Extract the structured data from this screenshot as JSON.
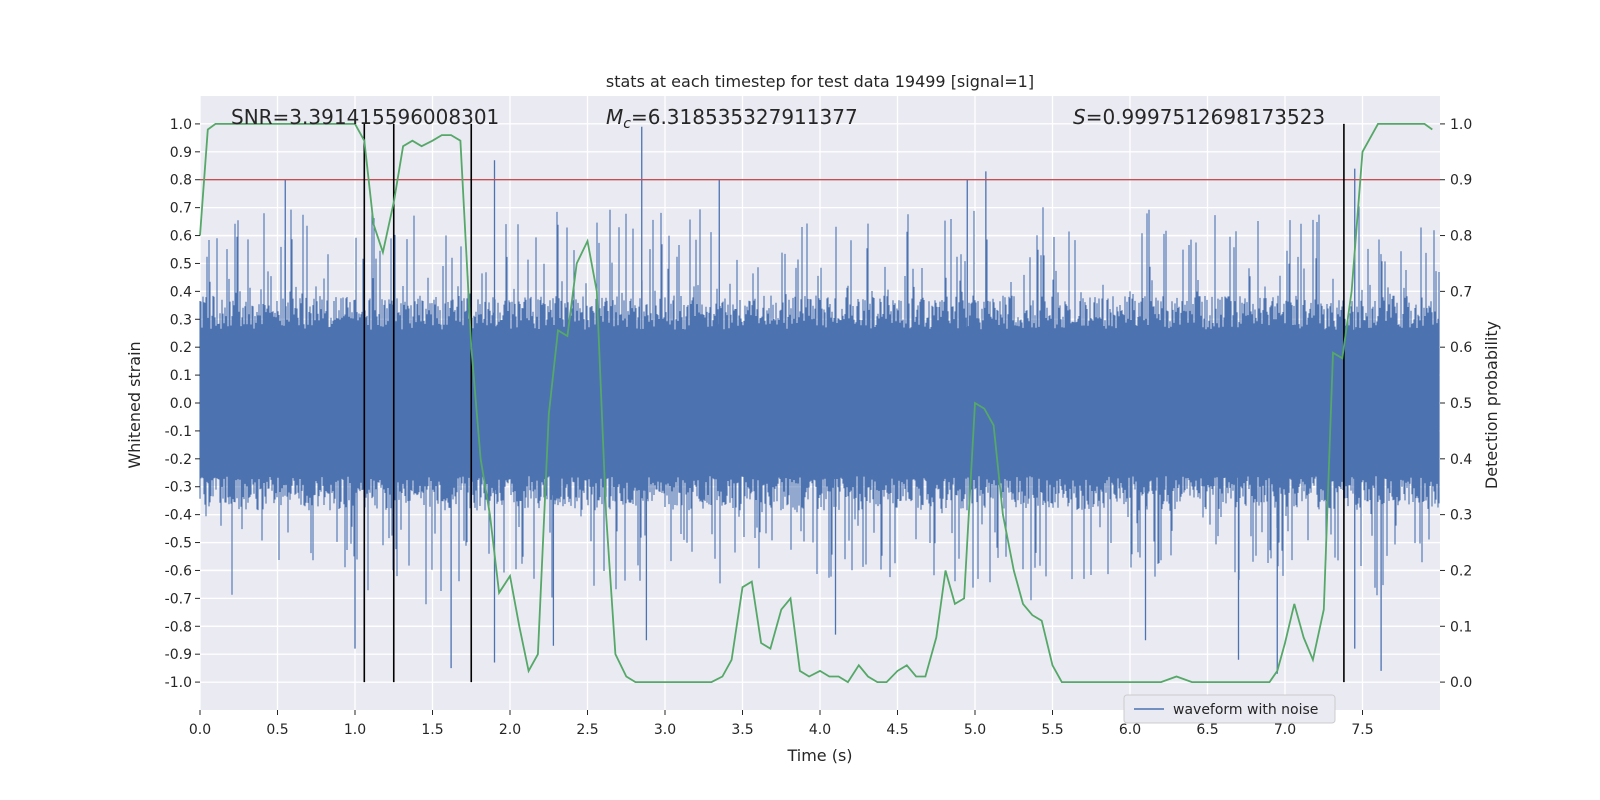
{
  "chart_data": {
    "type": "line",
    "title": "stats at each timestep for test data 19499 [signal=1]",
    "xlabel": "Time (s)",
    "ylabel": "Whitened strain",
    "ylabel_right": "Detection probability",
    "xlim": [
      0.0,
      8.0
    ],
    "ylim": [
      -1.1,
      1.1
    ],
    "ylim_right": [
      -0.05,
      1.05
    ],
    "x_ticks": [
      "0.0",
      "0.5",
      "1.0",
      "1.5",
      "2.0",
      "2.5",
      "3.0",
      "3.5",
      "4.0",
      "4.5",
      "5.0",
      "5.5",
      "6.0",
      "6.5",
      "7.0",
      "7.5"
    ],
    "y_ticks": [
      "1.0",
      "0.9",
      "0.8",
      "0.7",
      "0.6",
      "0.5",
      "0.4",
      "0.3",
      "0.2",
      "0.1",
      "0.0",
      "-0.1",
      "-0.2",
      "-0.3",
      "-0.4",
      "-0.5",
      "-0.6",
      "-0.7",
      "-0.8",
      "-0.9",
      "-1.0"
    ],
    "y_ticks_right": [
      "1.0",
      "0.9",
      "0.8",
      "0.7",
      "0.6",
      "0.5",
      "0.4",
      "0.3",
      "0.2",
      "0.1",
      "0.0"
    ],
    "grid": true,
    "annotations": {
      "snr": "SNR=3.391415596008301",
      "mc_symbol": "M",
      "mc_sub": "c",
      "mc_value": "=6.318535327911377",
      "s_symbol": "S",
      "s_value": "=0.9997512698173523"
    },
    "threshold": {
      "axis": "right",
      "value": 0.9,
      "color": "#c44e52"
    },
    "vertical_markers": [
      1.06,
      1.25,
      1.75,
      7.38
    ],
    "waveform": {
      "name": "waveform with noise",
      "color": "#4c72b0",
      "description": "dense noisy strain signal sampled over 0-8 s, amplitude mostly within +/-0.4 with peaks reaching about +/-1.0",
      "core_amplitude": 0.35,
      "peak_points": [
        {
          "x": 0.55,
          "y": 0.8
        },
        {
          "x": 1.0,
          "y": -0.88
        },
        {
          "x": 1.62,
          "y": -0.95
        },
        {
          "x": 1.9,
          "y": 0.87
        },
        {
          "x": 1.9,
          "y": -0.93
        },
        {
          "x": 2.28,
          "y": -0.87
        },
        {
          "x": 2.85,
          "y": 0.99
        },
        {
          "x": 2.88,
          "y": -0.85
        },
        {
          "x": 3.35,
          "y": 0.8
        },
        {
          "x": 4.1,
          "y": -0.83
        },
        {
          "x": 4.95,
          "y": 0.8
        },
        {
          "x": 5.07,
          "y": 0.83
        },
        {
          "x": 6.1,
          "y": -0.85
        },
        {
          "x": 6.7,
          "y": -0.92
        },
        {
          "x": 6.95,
          "y": -0.97
        },
        {
          "x": 7.45,
          "y": 0.84
        },
        {
          "x": 7.45,
          "y": -0.88
        },
        {
          "x": 7.62,
          "y": -0.96
        }
      ]
    },
    "detection_probability": {
      "name": "detection probability",
      "color": "#55a868",
      "x": [
        0.0,
        0.05,
        0.1,
        0.2,
        0.4,
        0.6,
        0.8,
        1.0,
        1.06,
        1.12,
        1.18,
        1.25,
        1.31,
        1.37,
        1.43,
        1.5,
        1.56,
        1.62,
        1.68,
        1.75,
        1.81,
        1.87,
        1.93,
        2.0,
        2.06,
        2.12,
        2.18,
        2.25,
        2.31,
        2.37,
        2.43,
        2.5,
        2.56,
        2.62,
        2.68,
        2.75,
        2.81,
        2.87,
        2.95,
        3.1,
        3.3,
        3.37,
        3.43,
        3.5,
        3.56,
        3.62,
        3.68,
        3.75,
        3.81,
        3.87,
        3.93,
        4.0,
        4.06,
        4.12,
        4.18,
        4.25,
        4.31,
        4.37,
        4.43,
        4.5,
        4.56,
        4.62,
        4.68,
        4.75,
        4.81,
        4.87,
        4.93,
        5.0,
        5.06,
        5.12,
        5.18,
        5.25,
        5.31,
        5.37,
        5.43,
        5.5,
        5.56,
        5.62,
        5.8,
        6.0,
        6.2,
        6.3,
        6.4,
        6.5,
        6.7,
        6.9,
        6.95,
        7.0,
        7.06,
        7.12,
        7.18,
        7.25,
        7.31,
        7.37,
        7.43,
        7.5,
        7.6,
        7.8,
        7.9,
        7.95
      ],
      "y": [
        0.8,
        0.99,
        1.0,
        1.0,
        1.0,
        1.0,
        1.0,
        1.0,
        0.97,
        0.82,
        0.77,
        0.86,
        0.96,
        0.97,
        0.96,
        0.97,
        0.98,
        0.98,
        0.97,
        0.6,
        0.4,
        0.3,
        0.16,
        0.19,
        0.1,
        0.02,
        0.05,
        0.48,
        0.63,
        0.62,
        0.75,
        0.79,
        0.7,
        0.3,
        0.05,
        0.01,
        0.0,
        0.0,
        0.0,
        0.0,
        0.0,
        0.01,
        0.04,
        0.17,
        0.18,
        0.07,
        0.06,
        0.13,
        0.15,
        0.02,
        0.01,
        0.02,
        0.01,
        0.01,
        0.0,
        0.03,
        0.01,
        0.0,
        0.0,
        0.02,
        0.03,
        0.01,
        0.01,
        0.08,
        0.2,
        0.14,
        0.15,
        0.5,
        0.49,
        0.46,
        0.3,
        0.2,
        0.14,
        0.12,
        0.11,
        0.03,
        0.0,
        0.0,
        0.0,
        0.0,
        0.0,
        0.01,
        0.0,
        0.0,
        0.0,
        0.0,
        0.02,
        0.07,
        0.14,
        0.08,
        0.04,
        0.13,
        0.59,
        0.58,
        0.7,
        0.95,
        1.0,
        1.0,
        1.0,
        0.99
      ]
    },
    "legend": {
      "placement": "lower-right",
      "entries": [
        "waveform with noise"
      ]
    }
  }
}
